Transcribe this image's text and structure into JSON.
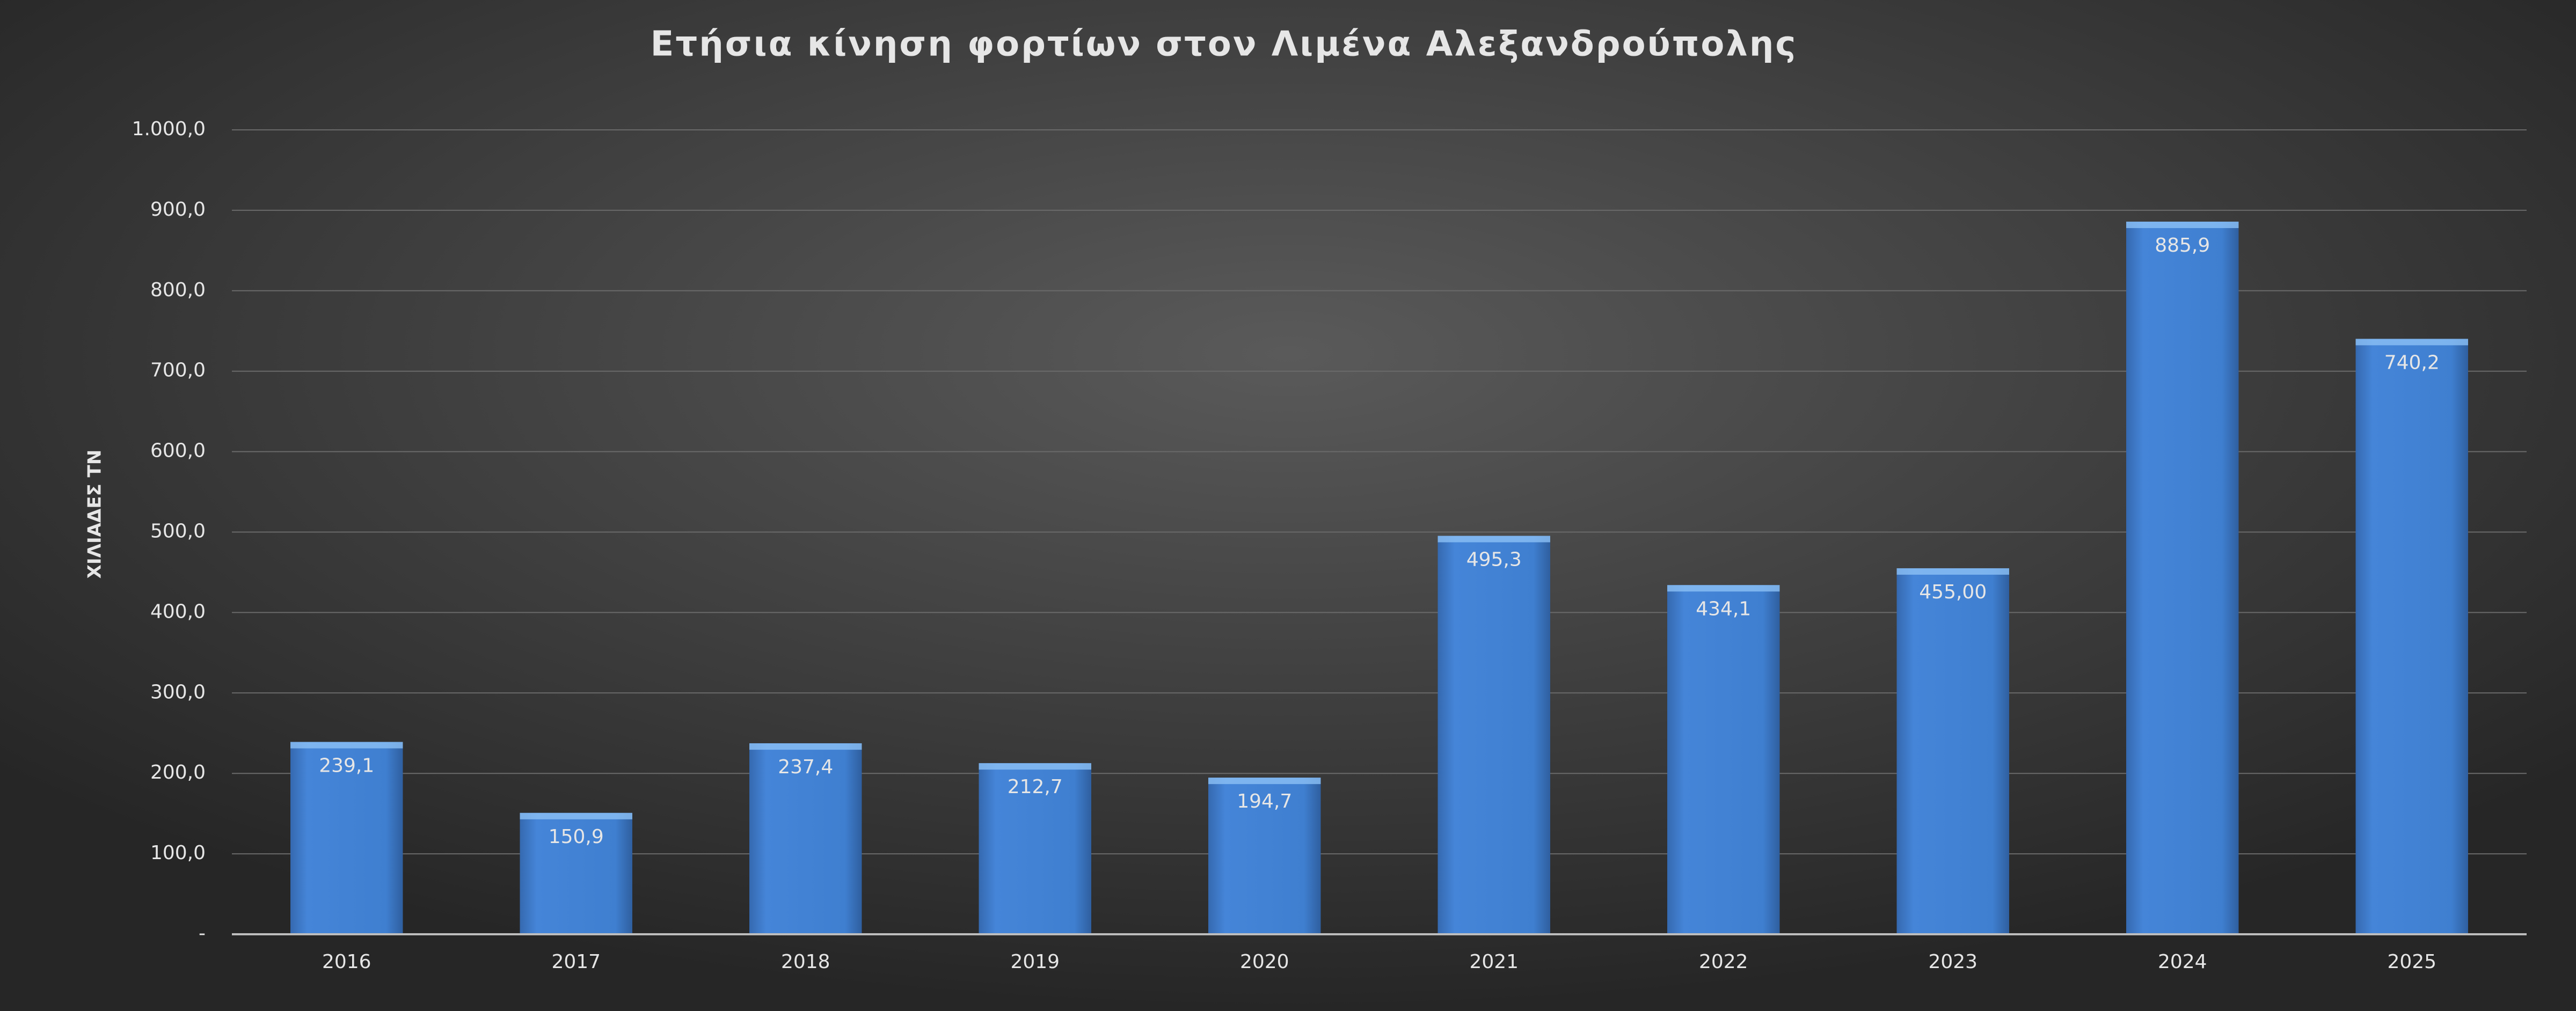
{
  "chart_data": {
    "type": "bar",
    "title": "Ετήσια κίνηση φορτίων στον Λιμένα Αλεξανδρούπολης",
    "y_label": "ΧΙΛΙΑΔΕΣ   ΤΝ",
    "categories": [
      "2016",
      "2017",
      "2018",
      "2019",
      "2020",
      "2021",
      "2022",
      "2023",
      "2024",
      "2025"
    ],
    "values": [
      239.1,
      150.9,
      237.4,
      212.7,
      194.7,
      495.3,
      434.1,
      455.0,
      885.9,
      740.2
    ],
    "value_labels": [
      "239,1",
      "150,9",
      "237,4",
      "212,7",
      "194,7",
      "495,3",
      "434,1",
      "455,00",
      "885,9",
      "740,2"
    ],
    "color": "#3f7fd0",
    "ylim": [
      0,
      1000
    ],
    "yticks": [
      {
        "value": 0,
        "label": "-"
      },
      {
        "value": 100,
        "label": "100,0"
      },
      {
        "value": 200,
        "label": "200,0"
      },
      {
        "value": 300,
        "label": "300,0"
      },
      {
        "value": 400,
        "label": "400,0"
      },
      {
        "value": 500,
        "label": "500,0"
      },
      {
        "value": 600,
        "label": "600,0"
      },
      {
        "value": 700,
        "label": "700,0"
      },
      {
        "value": 800,
        "label": "800,0"
      },
      {
        "value": 900,
        "label": "900,0"
      },
      {
        "value": 1000,
        "label": "1.000,0"
      }
    ],
    "grid": true
  }
}
